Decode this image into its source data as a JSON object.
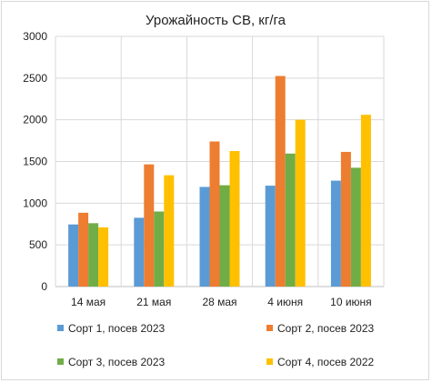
{
  "chart_data": {
    "type": "bar",
    "title": "Урожайность СВ, кг/га",
    "xlabel": "",
    "ylabel": "",
    "categories": [
      "14 мая",
      "21 мая",
      "28 мая",
      "4 июня",
      "10 июня"
    ],
    "series": [
      {
        "name": "Сорт 1, посев 2023",
        "color": "#5b9bd5",
        "values": [
          745,
          825,
          1195,
          1210,
          1270
        ]
      },
      {
        "name": "Сорт 2, посев 2023",
        "color": "#ed7d31",
        "values": [
          885,
          1465,
          1740,
          2525,
          1615
        ]
      },
      {
        "name": "Сорт 3, посев 2023",
        "color": "#70ad47",
        "values": [
          760,
          900,
          1215,
          1595,
          1425
        ]
      },
      {
        "name": "Сорт 4, посев 2022",
        "color": "#ffc000",
        "values": [
          710,
          1335,
          1625,
          2000,
          2060
        ]
      }
    ],
    "ylim": [
      0,
      3000
    ],
    "yticks": [
      "0",
      "500",
      "1000",
      "1500",
      "2000",
      "2500",
      "3000"
    ],
    "grid": true,
    "legend_position": "bottom"
  }
}
